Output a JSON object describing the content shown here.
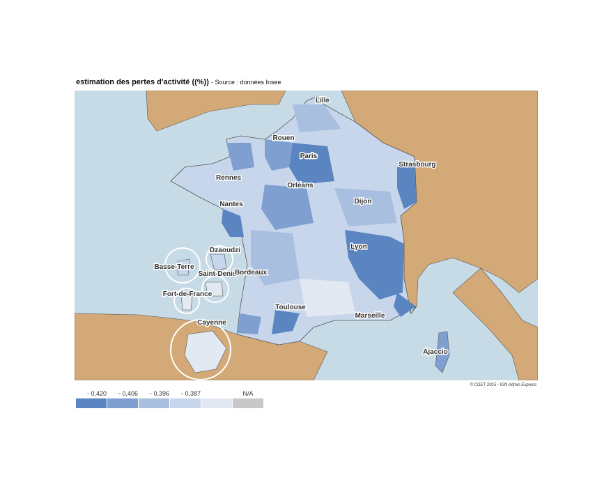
{
  "header": {
    "title": "estimation des pertes d'activité ((%))",
    "source": "- Source : données Insee"
  },
  "cities": [
    "Lille",
    "Rouen",
    "Paris",
    "Strasbourg",
    "Rennes",
    "Orléans",
    "Nantes",
    "Dijon",
    "Lyon",
    "Dzaoudzi",
    "Basse-Terre",
    "Saint-Denis",
    "Bordeaux",
    "Fort-de-France",
    "Toulouse",
    "Marseille",
    "Cayenne",
    "Ajaccio"
  ],
  "legend": [
    {
      "label": "- 0,420",
      "color": "#5a85c0"
    },
    {
      "label": "- 0,406",
      "color": "#7f9fd1"
    },
    {
      "label": "- 0,396",
      "color": "#a9bfe0"
    },
    {
      "label": "- 0,387",
      "color": "#c8d6eb"
    },
    {
      "label": "N/A",
      "color": "#c8c8c8"
    }
  ],
  "legend_last_color": "#e2e9f3",
  "credit": "© CGET 2015 - IGN Admin Express"
}
